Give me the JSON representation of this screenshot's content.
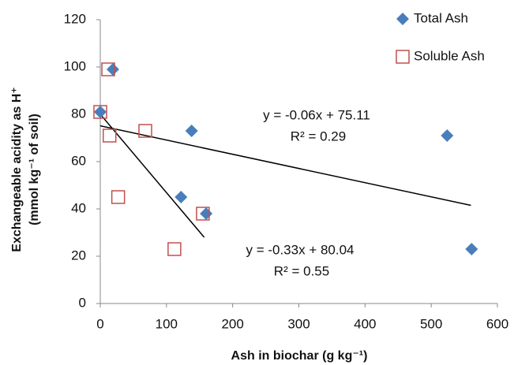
{
  "chart_data": {
    "type": "scatter",
    "x_label": "Ash in biochar (g  kg⁻¹)",
    "y_label": [
      "Exchangeable acidity as H⁺",
      "(mmol kg⁻¹ of soil)"
    ],
    "xlim": [
      0,
      600
    ],
    "xticks": [
      0,
      100,
      200,
      300,
      400,
      500,
      600
    ],
    "ylim": [
      0,
      120
    ],
    "yticks": [
      0,
      20,
      40,
      60,
      80,
      100,
      120
    ],
    "legend": "top-right",
    "series": [
      {
        "name": "Total Ash",
        "color": "#4a7ebb",
        "marker": "diamond",
        "x": [
          0,
          19,
          138,
          122,
          160,
          524,
          561
        ],
        "values": [
          81,
          99,
          73,
          45,
          38,
          71,
          23
        ]
      },
      {
        "name": "Soluble Ash",
        "color": "#c0504d",
        "marker": "square",
        "x": [
          0,
          12,
          14,
          68,
          27,
          112,
          155
        ],
        "values": [
          81,
          99,
          71,
          73,
          45,
          23,
          38
        ]
      }
    ],
    "trendlines": [
      {
        "equation": "y = -0.06x + 75.11",
        "r2": "R² = 0.29",
        "color": "#000000",
        "x": [
          0,
          560
        ],
        "values": [
          75.11,
          41.5
        ]
      },
      {
        "equation": "y = -0.33x + 80.04",
        "r2": "R² = 0.55",
        "color": "#000000",
        "x": [
          0,
          157
        ],
        "values": [
          80.04,
          28
        ]
      }
    ]
  }
}
